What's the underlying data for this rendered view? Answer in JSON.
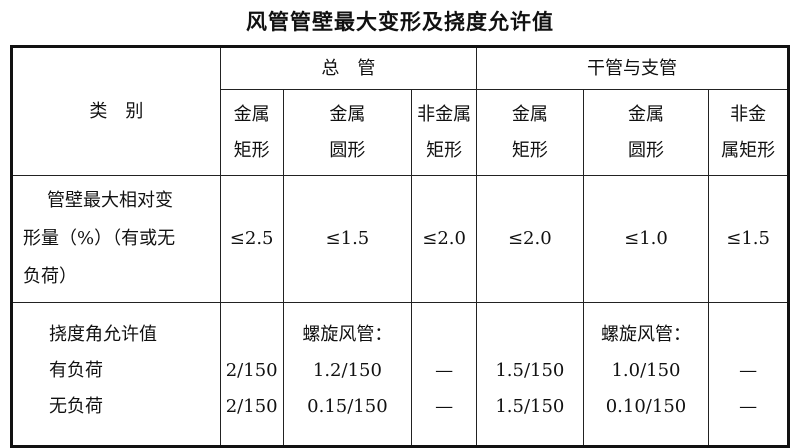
{
  "title": "风管管壁最大变形及挠度允许值",
  "header": {
    "category": "类　别",
    "group1": "总　管",
    "group2": "干管与支管",
    "cols": [
      "金属\n矩形",
      "金属\n圆形",
      "非金属\n矩形",
      "金属\n矩形",
      "金属\n圆形",
      "非金\n属矩形"
    ]
  },
  "row1": {
    "label_lines": [
      "管壁最大相对变",
      "形量（%）（有或无",
      "负荷）"
    ],
    "values": [
      "≤2.5",
      "≤1.5",
      "≤2.0",
      "≤2.0",
      "≤1.0",
      "≤1.5"
    ]
  },
  "row2": {
    "label_lines": [
      "挠度角允许值",
      "有负荷",
      "无负荷"
    ],
    "spiral_label": "螺旋风管：",
    "loaded": [
      "2/150",
      "1.2/150",
      "—",
      "1.5/150",
      "1.0/150",
      "—"
    ],
    "unloaded": [
      "2/150",
      "0.15/150",
      "—",
      "1.5/150",
      "0.10/150",
      "—"
    ]
  }
}
